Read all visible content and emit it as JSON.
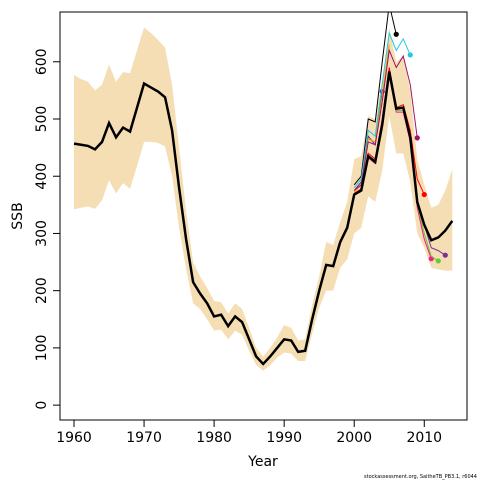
{
  "chart_data": {
    "type": "line",
    "ylabel": "SSB",
    "xlabel": "Year",
    "note": "stockassessment.org, SaitheTB_PB3.1, r6044",
    "xlim": [
      1958,
      2016.1
    ],
    "ylim": [
      -26,
      687
    ],
    "xticks": [
      1960,
      1970,
      1980,
      1990,
      2000,
      2010
    ],
    "yticks": [
      0,
      100,
      200,
      300,
      400,
      500,
      600
    ],
    "band": {
      "color": "#f5deb3",
      "x": [
        1960,
        1961,
        1962,
        1963,
        1964,
        1965,
        1966,
        1967,
        1968,
        1969,
        1970,
        1971,
        1972,
        1973,
        1974,
        1975,
        1976,
        1977,
        1978,
        1979,
        1980,
        1981,
        1982,
        1983,
        1984,
        1985,
        1986,
        1987,
        1988,
        1989,
        1990,
        1991,
        1992,
        1993,
        1994,
        1995,
        1996,
        1997,
        1998,
        1999,
        2000,
        2001,
        2002,
        2003,
        2004,
        2005,
        2006,
        2007,
        2008,
        2009,
        2010,
        2011,
        2012,
        2013,
        2014
      ],
      "upper": [
        577,
        570,
        565,
        550,
        560,
        595,
        565,
        582,
        580,
        620,
        660,
        650,
        638,
        625,
        560,
        450,
        340,
        250,
        225,
        205,
        182,
        180,
        160,
        178,
        168,
        135,
        100,
        85,
        100,
        118,
        140,
        135,
        113,
        115,
        175,
        225,
        285,
        280,
        320,
        355,
        430,
        435,
        505,
        500,
        570,
        660,
        600,
        610,
        550,
        430,
        385,
        345,
        350,
        375,
        412
      ],
      "lower": [
        342,
        345,
        347,
        343,
        358,
        393,
        370,
        388,
        378,
        418,
        460,
        460,
        458,
        452,
        400,
        310,
        238,
        178,
        168,
        150,
        130,
        132,
        115,
        130,
        123,
        95,
        70,
        60,
        70,
        83,
        92,
        90,
        77,
        77,
        125,
        170,
        200,
        200,
        240,
        255,
        300,
        310,
        365,
        355,
        410,
        505,
        440,
        440,
        390,
        300,
        275,
        240,
        237,
        235,
        235
      ]
    },
    "series": [
      {
        "color": "#000000",
        "width": 2.5,
        "dot": false,
        "x": [
          1960,
          1961,
          1962,
          1963,
          1964,
          1965,
          1966,
          1967,
          1968,
          1969,
          1970,
          1971,
          1972,
          1973,
          1974,
          1975,
          1976,
          1977,
          1978,
          1979,
          1980,
          1981,
          1982,
          1983,
          1984,
          1985,
          1986,
          1987,
          1988,
          1989,
          1990,
          1991,
          1992,
          1993,
          1994,
          1995,
          1996,
          1997,
          1998,
          1999,
          2000,
          2001,
          2002,
          2003,
          2004,
          2005,
          2006,
          2007,
          2008,
          2009,
          2010,
          2011,
          2012,
          2013,
          2014
        ],
        "values": [
          457,
          455,
          453,
          447,
          460,
          493,
          468,
          485,
          478,
          520,
          562,
          555,
          548,
          538,
          480,
          380,
          290,
          215,
          195,
          178,
          155,
          158,
          138,
          155,
          145,
          115,
          85,
          72,
          85,
          100,
          115,
          113,
          93,
          95,
          150,
          200,
          245,
          243,
          285,
          310,
          368,
          375,
          435,
          425,
          490,
          583,
          518,
          520,
          468,
          355,
          315,
          288,
          293,
          305,
          322
        ]
      },
      {
        "color": "#7b3294",
        "width": 1,
        "dot": true,
        "x": [
          2000,
          2001,
          2002,
          2003,
          2004,
          2005,
          2006,
          2007,
          2008,
          2009,
          2010,
          2011,
          2012,
          2013
        ],
        "values": [
          368,
          375,
          435,
          425,
          490,
          583,
          518,
          520,
          468,
          355,
          315,
          275,
          270,
          262
        ]
      },
      {
        "color": "#66cc33",
        "width": 1,
        "dot": true,
        "x": [
          2000,
          2001,
          2002,
          2003,
          2004,
          2005,
          2006,
          2007,
          2008,
          2009,
          2010,
          2011,
          2012
        ],
        "values": [
          368,
          375,
          435,
          425,
          490,
          580,
          515,
          515,
          465,
          350,
          300,
          260,
          252
        ]
      },
      {
        "color": "#ff1493",
        "width": 1,
        "dot": true,
        "x": [
          2000,
          2001,
          2002,
          2003,
          2004,
          2005,
          2006,
          2007,
          2008,
          2009,
          2010,
          2011
        ],
        "values": [
          368,
          375,
          432,
          422,
          485,
          575,
          512,
          512,
          460,
          345,
          290,
          256
        ]
      },
      {
        "color": "#ff0000",
        "width": 1,
        "dot": true,
        "x": [
          2000,
          2001,
          2002,
          2003,
          2004,
          2005,
          2006,
          2007,
          2008,
          2009,
          2010
        ],
        "values": [
          370,
          378,
          440,
          430,
          500,
          590,
          520,
          525,
          480,
          395,
          368
        ]
      },
      {
        "color": "#a0106b",
        "width": 1,
        "dot": true,
        "x": [
          2000,
          2001,
          2002,
          2003,
          2004,
          2005,
          2006,
          2007,
          2008,
          2009
        ],
        "values": [
          375,
          385,
          460,
          455,
          530,
          620,
          590,
          610,
          560,
          467
        ]
      },
      {
        "color": "#22c8e0",
        "width": 1,
        "dot": true,
        "x": [
          2000,
          2001,
          2002,
          2003,
          2004,
          2005,
          2006,
          2007,
          2008
        ],
        "values": [
          380,
          395,
          480,
          470,
          560,
          650,
          620,
          640,
          612
        ]
      },
      {
        "color": "#000000",
        "width": 1,
        "dot": true,
        "x": [
          2000,
          2001,
          2002,
          2003,
          2004,
          2005,
          2006
        ],
        "values": [
          385,
          400,
          500,
          495,
          600,
          700,
          648
        ]
      },
      {
        "color": "#e69f00",
        "width": 1,
        "dot": false,
        "x": [
          2000,
          2001,
          2002,
          2003,
          2004,
          2005
        ],
        "values": [
          372,
          385,
          465,
          460,
          540,
          630
        ]
      },
      {
        "color": "#5a2ca0",
        "width": 1,
        "dot": true,
        "x": [
          2000,
          2001,
          2002,
          2003,
          2004
        ],
        "values": [
          375,
          390,
          470,
          455,
          548
        ]
      }
    ]
  }
}
